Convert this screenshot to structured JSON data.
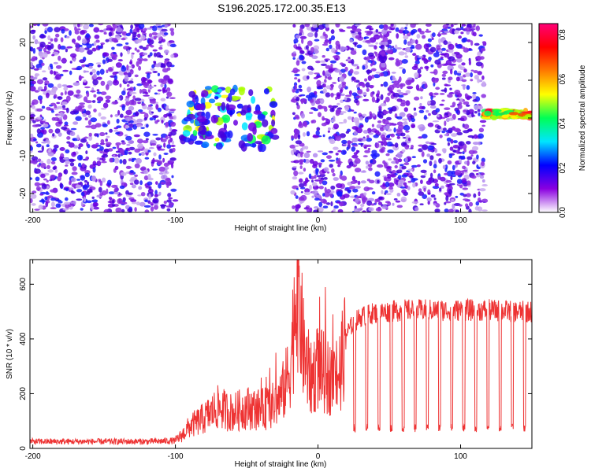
{
  "title": "S196.2025.172.00.35.E13",
  "chart_data": [
    {
      "type": "heatmap",
      "xlabel": "Height of straight line (km)",
      "ylabel": "Frequency (Hz)",
      "xlim": [
        -202,
        150
      ],
      "ylim": [
        -25,
        25
      ],
      "xticks": [
        -200,
        -100,
        0,
        100
      ],
      "yticks": [
        -20,
        -10,
        0,
        10,
        20
      ],
      "colorbar": {
        "label": "Normalized spectral amplitude",
        "range": [
          0.0,
          0.85
        ],
        "ticks": [
          "0.0",
          "0.2",
          "0.4",
          "0.6",
          "0.8"
        ],
        "colors": [
          "#ffffff",
          "#8a00e0",
          "#0000ff",
          "#00e5ff",
          "#00ff55",
          "#ffff00",
          "#ff7a00",
          "#ff0000",
          "#ff0077"
        ]
      },
      "features": [
        {
          "x_range": [
            -202,
            -100
          ],
          "frequency_range": [
            -25,
            25
          ],
          "amplitude": 0.15,
          "pattern": "broadband noise"
        },
        {
          "x_range": [
            -95,
            -30
          ],
          "frequency_range": [
            -8,
            8
          ],
          "amplitude": 0.45,
          "pattern": "clustered signal near 0 Hz"
        },
        {
          "x_range": [
            -18,
            117
          ],
          "frequency_range": [
            -25,
            25
          ],
          "amplitude": 0.15,
          "pattern": "broadband noise"
        },
        {
          "x_range": [
            45,
            46
          ],
          "frequency_range": [
            12,
            20
          ],
          "amplitude": 0.3,
          "pattern": "narrow spike"
        },
        {
          "x_range": [
            117,
            150
          ],
          "frequency_range": [
            0,
            2
          ],
          "amplitude": 0.75,
          "pattern": "strong narrow band"
        }
      ]
    },
    {
      "type": "line",
      "xlabel": "Height of straight line (km)",
      "ylabel": "SNR (10 * v/v)",
      "xlim": [
        -202,
        150
      ],
      "ylim": [
        0,
        690
      ],
      "xticks": [
        -200,
        -100,
        0,
        100
      ],
      "yticks": [
        0,
        200,
        400,
        600
      ],
      "series": [
        {
          "color": "#ee3333",
          "x": [
            -202,
            -180,
            -160,
            -140,
            -120,
            -100,
            -95,
            -90,
            -80,
            -70,
            -60,
            -50,
            -40,
            -30,
            -25,
            -20,
            -17,
            -15,
            -10,
            -5,
            0,
            5,
            10,
            15,
            18,
            20,
            25,
            30,
            35,
            40,
            50,
            60,
            80,
            100,
            120,
            140,
            150
          ],
          "values": [
            25,
            25,
            25,
            25,
            25,
            28,
            50,
            80,
            110,
            150,
            130,
            150,
            140,
            160,
            200,
            280,
            450,
            650,
            350,
            250,
            300,
            270,
            250,
            280,
            350,
            420,
            460,
            480,
            490,
            495,
            500,
            505,
            505,
            505,
            505,
            500,
            500
          ]
        }
      ],
      "periodic_dips": {
        "x_start": 18,
        "x_end": 150,
        "period": 8.5,
        "depth_value": 75
      }
    }
  ]
}
